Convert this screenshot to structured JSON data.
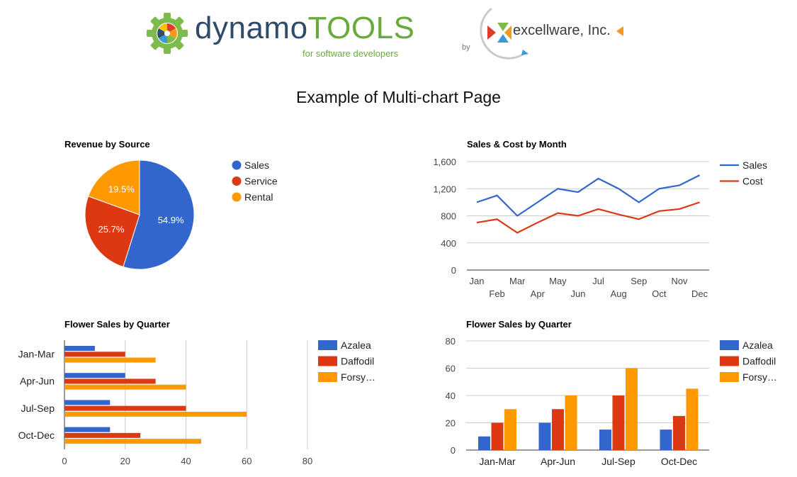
{
  "page_title": "Example of Multi-chart Page",
  "header": {
    "dynamo_logo": {
      "text_part1": "dynamo",
      "text_part2": "TOOLS",
      "tagline": "for software developers"
    },
    "excellware_logo": {
      "by_text": "by",
      "name": "excellware, Inc."
    }
  },
  "colors": {
    "azalea_blue": "#3366cc",
    "daffodil_red": "#dc3912",
    "forsythia_orange": "#ff9900",
    "grid": "#cccccc"
  },
  "chart_data": [
    {
      "id": "pie",
      "type": "pie",
      "title": "Revenue by Source",
      "slices": [
        {
          "label": "Sales",
          "value": 54.9,
          "color": "#3366cc"
        },
        {
          "label": "Service",
          "value": 25.7,
          "color": "#dc3912"
        },
        {
          "label": "Rental",
          "value": 19.5,
          "color": "#ff9900"
        }
      ],
      "legend": "right"
    },
    {
      "id": "line",
      "type": "line",
      "title": "Sales & Cost by Month",
      "categories": [
        "Jan",
        "Feb",
        "Mar",
        "Apr",
        "May",
        "Jun",
        "Jul",
        "Aug",
        "Sep",
        "Oct",
        "Nov",
        "Dec"
      ],
      "series": [
        {
          "name": "Sales",
          "color": "#3366cc",
          "values": [
            1000,
            1100,
            800,
            1000,
            1200,
            1150,
            1350,
            1200,
            1000,
            1200,
            1250,
            1400
          ]
        },
        {
          "name": "Cost",
          "color": "#dc3912",
          "values": [
            700,
            750,
            550,
            700,
            840,
            800,
            900,
            820,
            750,
            870,
            900,
            1000
          ]
        }
      ],
      "ylim": [
        0,
        1600
      ],
      "yticks": [
        "0",
        "400",
        "800",
        "1,200",
        "1,600"
      ],
      "grid": true,
      "legend": "right"
    },
    {
      "id": "hbar",
      "type": "bar",
      "orientation": "horizontal",
      "title": "Flower Sales by Quarter",
      "categories": [
        "Jan-Mar",
        "Apr-Jun",
        "Jul-Sep",
        "Oct-Dec"
      ],
      "series": [
        {
          "name": "Azalea",
          "legend_label": "Azalea",
          "color": "#3366cc",
          "values": [
            10,
            20,
            15,
            15
          ]
        },
        {
          "name": "Daffodil",
          "legend_label": "Daffodil",
          "color": "#dc3912",
          "values": [
            20,
            30,
            40,
            25
          ]
        },
        {
          "name": "Forsythia",
          "legend_label": "Forsy…",
          "color": "#ff9900",
          "values": [
            30,
            40,
            60,
            45
          ]
        }
      ],
      "xlim": [
        0,
        80
      ],
      "xticks": [
        "0",
        "20",
        "40",
        "60",
        "80"
      ],
      "grid": true,
      "legend": "right"
    },
    {
      "id": "vbar",
      "type": "bar",
      "orientation": "vertical",
      "title": "Flower Sales by Quarter",
      "categories": [
        "Jan-Mar",
        "Apr-Jun",
        "Jul-Sep",
        "Oct-Dec"
      ],
      "series": [
        {
          "name": "Azalea",
          "legend_label": "Azalea",
          "color": "#3366cc",
          "values": [
            10,
            20,
            15,
            15
          ]
        },
        {
          "name": "Daffodil",
          "legend_label": "Daffodil",
          "color": "#dc3912",
          "values": [
            20,
            30,
            40,
            25
          ]
        },
        {
          "name": "Forsythia",
          "legend_label": "Forsy…",
          "color": "#ff9900",
          "values": [
            30,
            40,
            60,
            45
          ]
        }
      ],
      "ylim": [
        0,
        80
      ],
      "yticks": [
        "0",
        "20",
        "40",
        "60",
        "80"
      ],
      "grid": true,
      "legend": "right"
    }
  ]
}
